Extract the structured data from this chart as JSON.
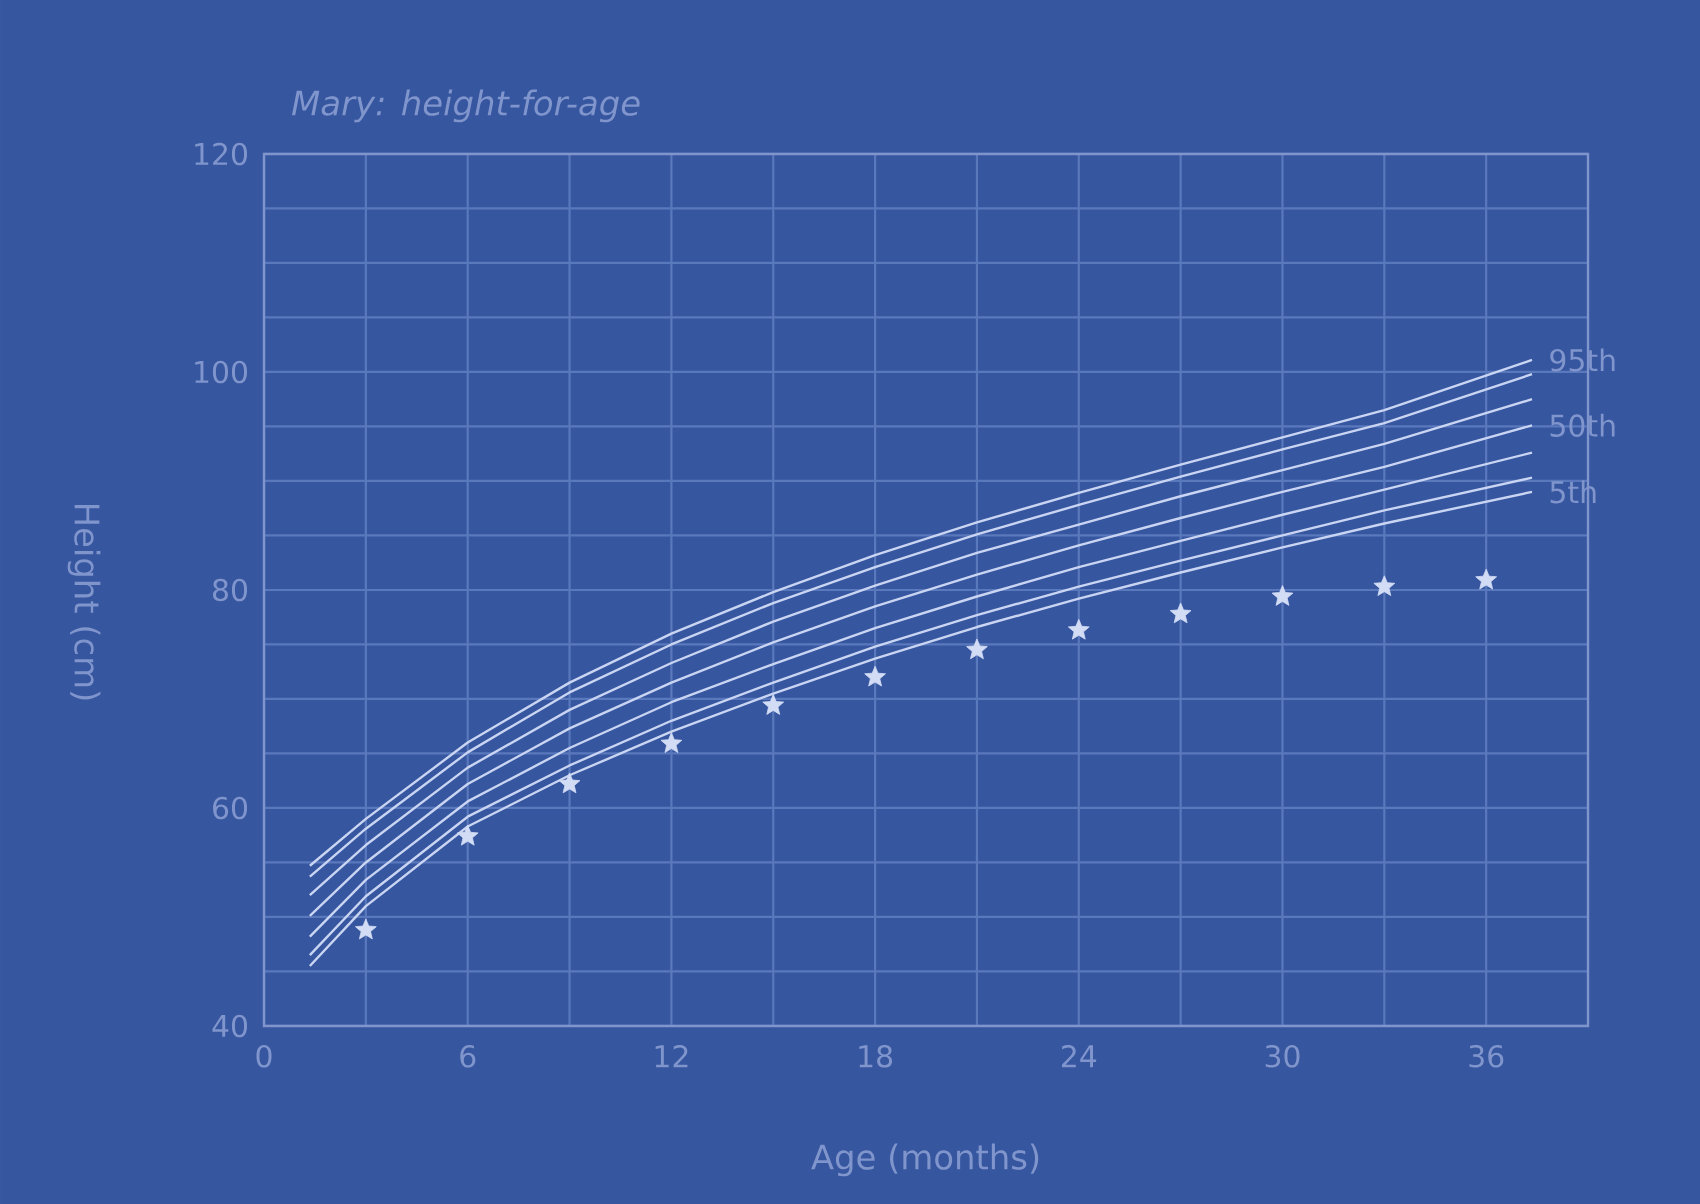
{
  "chart_data": {
    "type": "line",
    "title": "*Mary: height-for-age*",
    "xlabel": "Age (months)",
    "ylabel": "Height (cm)",
    "xlim": [
      0,
      39
    ],
    "xticks": [
      0,
      6,
      12,
      18,
      24,
      30,
      36
    ],
    "ylim": [
      40,
      120
    ],
    "yticks": [
      40,
      60,
      80,
      100,
      120
    ],
    "grid": true,
    "marker": "none",
    "line_style": "solid",
    "x": [
      1.35,
      3,
      6,
      9,
      12,
      15,
      18,
      21,
      24,
      27,
      30,
      33,
      37.35
    ],
    "series": [
      {
        "name": "95th",
        "color": "#c9d5f2",
        "values": [
          54.7,
          59.0,
          66.0,
          71.5,
          76.0,
          79.8,
          83.2,
          86.2,
          88.9,
          91.5,
          94.0,
          96.5,
          101.1
        ]
      },
      {
        "color": "#c9d5f2",
        "values": [
          53.7,
          58.1,
          65.1,
          70.6,
          75.0,
          78.8,
          82.1,
          85.1,
          87.8,
          90.4,
          92.9,
          95.3,
          99.8
        ]
      },
      {
        "color": "#c9d5f2",
        "values": [
          52.0,
          56.6,
          63.7,
          69.0,
          73.3,
          77.1,
          80.4,
          83.4,
          86.0,
          88.6,
          91.0,
          93.4,
          97.5
        ]
      },
      {
        "name": "50th",
        "color": "#c9d5f2",
        "values": [
          50.1,
          55.0,
          62.2,
          67.3,
          71.5,
          75.2,
          78.5,
          81.4,
          84.1,
          86.6,
          89.0,
          91.3,
          95.1
        ]
      },
      {
        "color": "#c9d5f2",
        "values": [
          48.2,
          53.4,
          60.6,
          65.5,
          69.7,
          73.2,
          76.5,
          79.4,
          82.1,
          84.5,
          86.9,
          89.2,
          92.6
        ]
      },
      {
        "color": "#c9d5f2",
        "values": [
          46.5,
          51.9,
          59.2,
          63.9,
          68.0,
          71.5,
          74.8,
          77.7,
          80.3,
          82.7,
          85.0,
          87.3,
          90.3
        ]
      },
      {
        "name": "5th",
        "color": "#c9d5f2",
        "values": [
          45.5,
          51.0,
          58.3,
          63.0,
          67.0,
          70.5,
          73.7,
          76.6,
          79.2,
          81.6,
          83.9,
          86.1,
          89.0
        ]
      },
      {
        "type": "scatter",
        "marker": "star",
        "color": "#d2dcf5",
        "x": [
          3,
          6,
          9,
          12,
          15,
          18,
          21,
          24,
          27,
          30,
          33,
          36
        ],
        "values": [
          48.8,
          57.4,
          62.2,
          65.9,
          69.4,
          72.0,
          74.5,
          76.3,
          77.8,
          79.4,
          80.3,
          80.9
        ]
      }
    ]
  }
}
